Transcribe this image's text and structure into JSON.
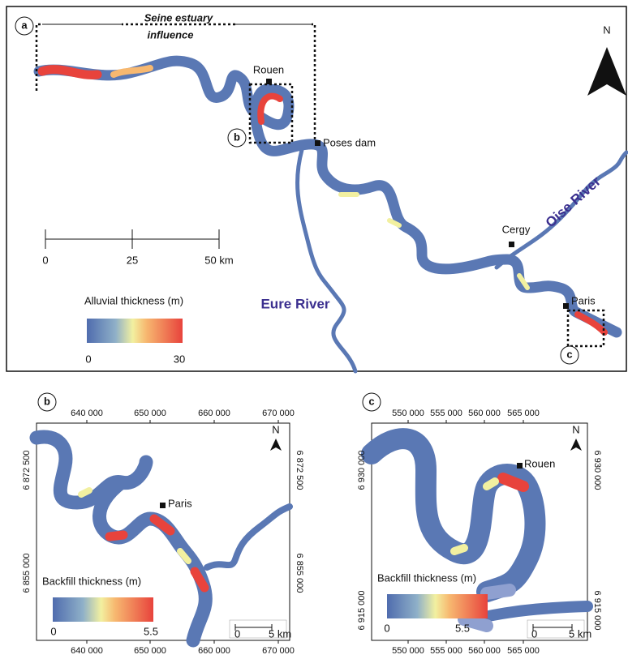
{
  "panel_a": {
    "letter": "a",
    "estuary_label": [
      "Seine estuary",
      "influence"
    ],
    "inset_b": "b",
    "inset_c": "c",
    "places": [
      "Rouen",
      "Poses dam",
      "Cergy",
      "Paris"
    ],
    "rivers": [
      "Oise River",
      "Eure River"
    ],
    "north": "N",
    "scale": [
      "0",
      "25",
      "50 km"
    ],
    "legend": {
      "title": "Alluvial thickness (m)",
      "min": "0",
      "max": "30"
    }
  },
  "panel_b": {
    "letter": "b",
    "place": "Paris",
    "north": "N",
    "x_ticks": [
      "640 000",
      "650 000",
      "660 000",
      "670 000"
    ],
    "y_ticks": [
      "6 872 500",
      "6 855 000"
    ],
    "scale": [
      "0",
      "5 km"
    ],
    "legend": {
      "title": "Backfill thickness (m)",
      "min": "0",
      "max": "5.5"
    }
  },
  "panel_c": {
    "letter": "c",
    "place": "Rouen",
    "north": "N",
    "x_ticks": [
      "550 000",
      "555 000",
      "560 000",
      "565 000"
    ],
    "y_ticks": [
      "6 930 000",
      "6 915 000"
    ],
    "scale": [
      "0",
      "5 km"
    ],
    "legend": {
      "title": "Backfill thickness (m)",
      "min": "0",
      "max": "5.5"
    }
  }
}
